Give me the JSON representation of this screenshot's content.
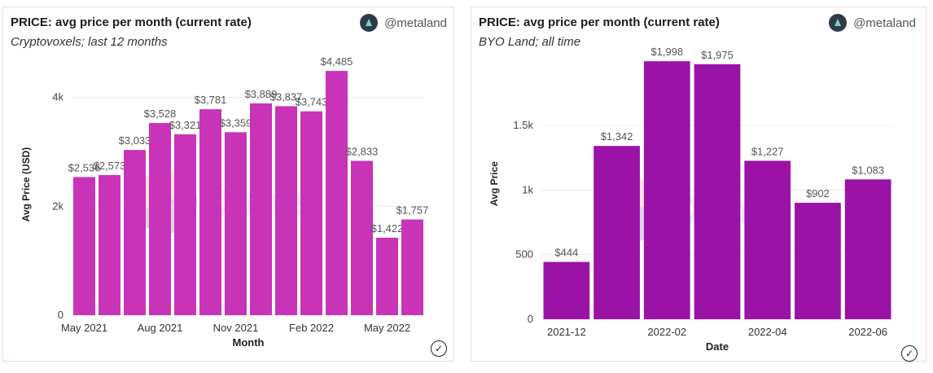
{
  "left": {
    "title": "PRICE: avg price per month (current rate)",
    "subtitle": "Cryptovoxels; last 12 months",
    "author": "@metaland",
    "watermark": "Dune"
  },
  "right": {
    "title": "PRICE: avg price per month (current rate)",
    "subtitle": "BYO Land; all time",
    "author": "@metaland",
    "watermark": "Dune"
  },
  "colors": {
    "left_bar": "#c933b8",
    "right_bar": "#9b12a6",
    "grid": "#ececec"
  },
  "icons": {
    "author_avatar": "metaland-avatar-icon",
    "verified": "checkmark-circle-icon"
  },
  "chart_data": [
    {
      "type": "bar",
      "categories": [
        "2021-05",
        "2021-06",
        "2021-07",
        "2021-08",
        "2021-09",
        "2021-10",
        "2021-11",
        "2021-12",
        "2022-01",
        "2022-02",
        "2022-03",
        "2022-04",
        "2022-05",
        "2022-06"
      ],
      "values": [
        2536,
        2573,
        3033,
        3528,
        3321,
        3781,
        3359,
        3889,
        3837,
        3743,
        4485,
        2833,
        1422,
        1757
      ],
      "data_labels": [
        "$2,536",
        "$2,573",
        "$3,033",
        "$3,528",
        "$3,321",
        "$3,781",
        "$3,359",
        "$3,889",
        "$3,837",
        "$3,743",
        "$4,485",
        "$2,833",
        "$1,422",
        "$1,757"
      ],
      "x_tick_labels": [
        {
          "index": 0,
          "label": "May 2021"
        },
        {
          "index": 3,
          "label": "Aug 2021"
        },
        {
          "index": 6,
          "label": "Nov 2021"
        },
        {
          "index": 9,
          "label": "Feb 2022"
        },
        {
          "index": 12,
          "label": "May 2022"
        }
      ],
      "y_ticks": [
        0,
        2000,
        4000
      ],
      "y_tick_labels": [
        "0",
        "2k",
        "4k"
      ],
      "ylim": [
        0,
        4800
      ],
      "xlabel": "Month",
      "ylabel": "Avg Price (USD)",
      "grid": true
    },
    {
      "type": "bar",
      "categories": [
        "2021-12",
        "2022-01",
        "2022-02",
        "2022-03",
        "2022-04",
        "2022-05",
        "2022-06"
      ],
      "values": [
        444,
        1342,
        1998,
        1975,
        1227,
        902,
        1083
      ],
      "data_labels": [
        "$444",
        "$1,342",
        "$1,998",
        "$1,975",
        "$1,227",
        "$902",
        "$1,083"
      ],
      "x_tick_labels": [
        {
          "index": 0,
          "label": "2021-12"
        },
        {
          "index": 2,
          "label": "2022-02"
        },
        {
          "index": 4,
          "label": "2022-04"
        },
        {
          "index": 6,
          "label": "2022-06"
        }
      ],
      "y_ticks": [
        0,
        500,
        1000,
        1500
      ],
      "y_tick_labels": [
        "0",
        "500",
        "1k",
        "1.5k"
      ],
      "ylim": [
        0,
        2100
      ],
      "xlabel": "Date",
      "ylabel": "Avg Price",
      "grid": true
    }
  ]
}
